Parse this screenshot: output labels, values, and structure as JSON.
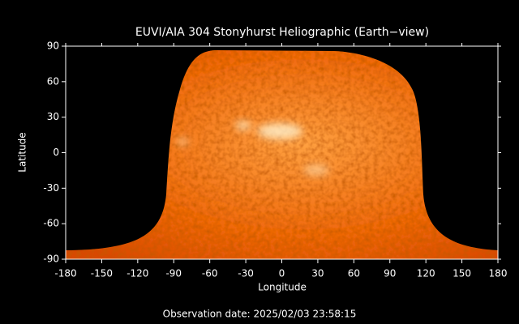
{
  "chart_data": {
    "type": "image",
    "title": "EUVI/AIA 304 Stonyhurst Heliographic (Earth−view)",
    "xlabel": "Longitude",
    "ylabel": "Latitude",
    "xlim": [
      -180,
      180
    ],
    "ylim": [
      -90,
      90
    ],
    "xticks": [
      -180,
      -150,
      -120,
      -90,
      -60,
      -30,
      0,
      30,
      60,
      90,
      120,
      150,
      180
    ],
    "yticks": [
      -90,
      -60,
      -30,
      0,
      30,
      60,
      90
    ],
    "footer": "Observation date: 2025/02/03 23:58:15"
  }
}
